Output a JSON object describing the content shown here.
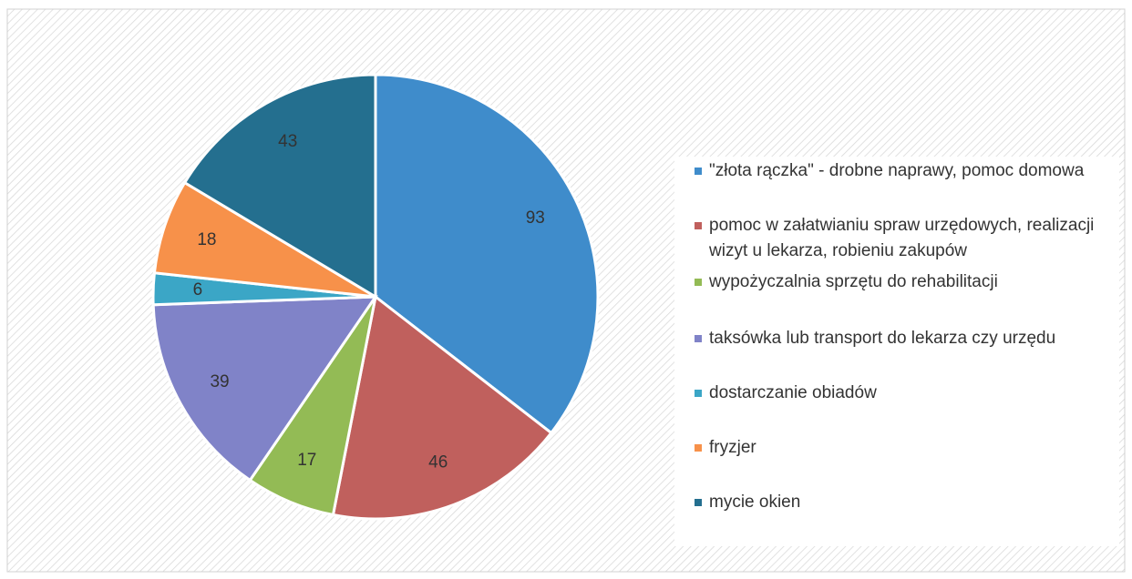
{
  "chart_data": {
    "type": "pie",
    "categories": [
      "\"złota rączka\" - drobne naprawy, pomoc domowa",
      "pomoc w załatwianiu spraw urzędowych, realizacji wizyt u lekarza, robieniu zakupów",
      "wypożyczalnia sprzętu do rehabilitacji",
      "taksówka lub transport do lekarza czy urzędu",
      "dostarczanie obiadów",
      "fryzjer",
      "mycie okien"
    ],
    "values": [
      93,
      46,
      17,
      39,
      6,
      18,
      43
    ],
    "colors": [
      "#3f8ccb",
      "#c0605d",
      "#93bb55",
      "#8083c8",
      "#3ba6c6",
      "#f7914a",
      "#246f8f"
    ],
    "legend": "right"
  }
}
